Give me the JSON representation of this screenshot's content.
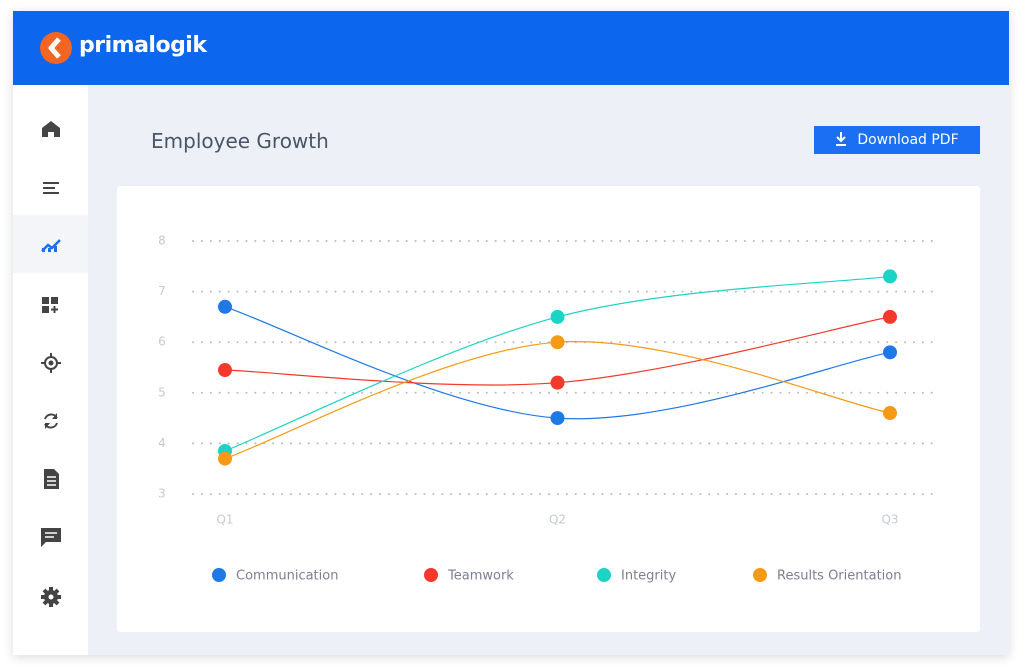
{
  "header": {
    "brand": "primalogik"
  },
  "page": {
    "title": "Employee Growth",
    "download_button": "Download PDF"
  },
  "chart_data": {
    "type": "line",
    "categories": [
      "Q1",
      "Q2",
      "Q3"
    ],
    "series": [
      {
        "name": "Communication",
        "color": "#1e78e6",
        "values": [
          6.7,
          4.5,
          5.8
        ]
      },
      {
        "name": "Teamwork",
        "color": "#f2392c",
        "values": [
          5.45,
          5.2,
          6.5
        ]
      },
      {
        "name": "Integrity",
        "color": "#1dd3c6",
        "values": [
          3.85,
          6.5,
          7.3
        ]
      },
      {
        "name": "Results Orientation",
        "color": "#f59a14",
        "values": [
          3.7,
          6.0,
          4.6
        ]
      }
    ],
    "ylim": [
      3,
      8
    ],
    "yticks": [
      3,
      4,
      5,
      6,
      7,
      8
    ],
    "grid": true,
    "legend": "bottom"
  }
}
